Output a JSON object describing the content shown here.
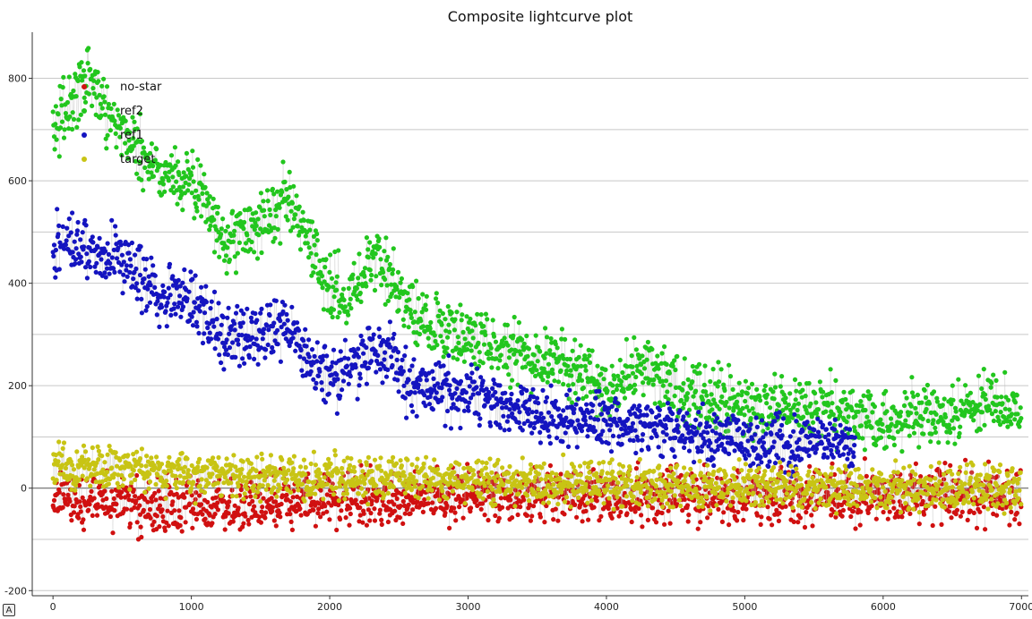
{
  "chart_data": {
    "type": "scatter",
    "title": "Composite lightcurve plot",
    "xlabel": "",
    "ylabel": "",
    "xlim": [
      -150,
      7050
    ],
    "ylim": [
      -210,
      890
    ],
    "x_ticks": [
      0,
      1000,
      2000,
      3000,
      4000,
      5000,
      6000,
      7000
    ],
    "y_ticks": [
      -200,
      0,
      200,
      400,
      600,
      800
    ],
    "grid": "horizontal",
    "legend_placement": "top-left",
    "series": [
      {
        "name": "no-star",
        "color": "#d01010",
        "x": [
          0,
          500,
          1000,
          1500,
          2000,
          2500,
          3000,
          3500,
          4000,
          4500,
          5000,
          5500,
          6000,
          6500,
          7000
        ],
        "y": [
          -20,
          -30,
          -35,
          -30,
          -25,
          -20,
          -15,
          -15,
          -15,
          -15,
          -15,
          -15,
          -15,
          -15,
          -15
        ]
      },
      {
        "name": "ref2",
        "color": "#22c61e",
        "x": [
          0,
          250,
          500,
          750,
          1000,
          1250,
          1500,
          1700,
          1900,
          2100,
          2350,
          2600,
          3000,
          3500,
          4000,
          4300,
          4600,
          5000,
          5500,
          6000,
          6500,
          6800,
          7000
        ],
        "y": [
          700,
          800,
          700,
          620,
          600,
          480,
          520,
          560,
          440,
          370,
          450,
          340,
          290,
          260,
          200,
          240,
          190,
          150,
          160,
          130,
          140,
          170,
          140
        ]
      },
      {
        "name": "ref1",
        "color": "#1414c0",
        "x": [
          0,
          250,
          500,
          750,
          1000,
          1250,
          1500,
          1700,
          1900,
          2100,
          2350,
          2600,
          3000,
          3500,
          4000,
          4500,
          5000,
          5500,
          5800
        ],
        "y": [
          480,
          460,
          450,
          380,
          370,
          290,
          300,
          310,
          230,
          220,
          280,
          200,
          180,
          140,
          130,
          110,
          90,
          90,
          80
        ]
      },
      {
        "name": "target",
        "color": "#c8c414",
        "x": [
          0,
          500,
          1000,
          1500,
          2000,
          2500,
          3000,
          3500,
          4000,
          4500,
          5000,
          5500,
          6000,
          6500,
          7000
        ],
        "y": [
          40,
          45,
          30,
          25,
          20,
          20,
          15,
          10,
          10,
          5,
          5,
          0,
          0,
          0,
          0
        ]
      }
    ]
  }
}
